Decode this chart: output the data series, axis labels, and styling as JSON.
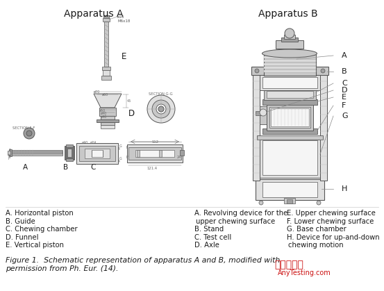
{
  "title_a": "Apparatus A",
  "title_b": "Apparatus B",
  "bg_color": "#ffffff",
  "text_color": "#1a1a1a",
  "line_color": "#555555",
  "fill_white": "#f5f5f5",
  "fill_light": "#e0e0e0",
  "fill_mid": "#c8c8c8",
  "fill_dark": "#a0a0a0",
  "fill_vdark": "#707070",
  "legend_a": [
    "A. Horizontal piston",
    "B. Guide",
    "C. Chewing chamber",
    "D. Funnel",
    "E. Vertical piston"
  ],
  "legend_b1_lines": [
    "A. Revolving device for the",
    "upper chewing surface",
    "B. Stand",
    "C. Test cell",
    "D. Axle"
  ],
  "legend_b2_lines": [
    "E. Upper chewing surface",
    "F. Lower chewing surface",
    "G. Base chamber",
    "H. Device for up-and-down",
    "chewing motion"
  ],
  "caption_line1": "Figure 1.  Schematic representation of apparatus A and B, modified with",
  "caption_line2": "permission from Ph. Eur. (14).",
  "wm1": "嘉峪检测网",
  "wm2": "AnyTesting.com",
  "title_fs": 10,
  "label_fs": 8.5,
  "legend_fs": 7.2,
  "caption_fs": 7.8,
  "tiny_fs": 4.0,
  "wm_fs1": 10,
  "wm_fs2": 7
}
